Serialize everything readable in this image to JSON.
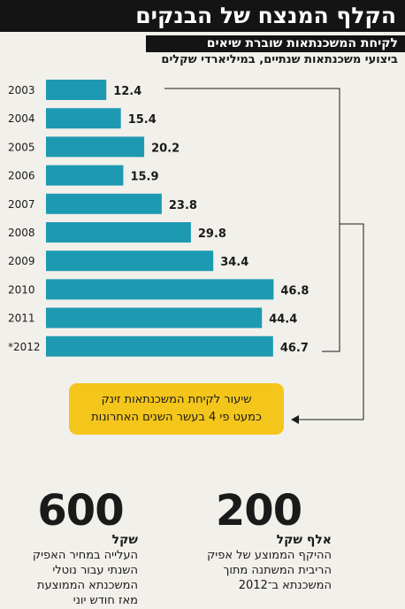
{
  "title": "הקלף המנצח של הבנקים",
  "subtitle": "לקיחת המשכנתאות שוברת שיאים",
  "units_note": "ביצועי משכנתאות שנתיים, במיליארדי שקלים",
  "colors": {
    "bar": "#1d9ab2",
    "callout": "#f4c51b",
    "title_bg": "#141414"
  },
  "chart_data": {
    "type": "bar",
    "orientation": "horizontal",
    "categories": [
      "2003",
      "2004",
      "2005",
      "2006",
      "2007",
      "2008",
      "2009",
      "2010",
      "2011",
      "*2012"
    ],
    "values": [
      12.4,
      15.4,
      20.2,
      15.9,
      23.8,
      29.8,
      34.4,
      46.8,
      44.4,
      46.7
    ],
    "value_labels": [
      "12.4",
      "15.4",
      "20.2",
      "15.9",
      "23.8",
      "29.8",
      "34.4",
      "46.8",
      "44.4",
      "46.7"
    ],
    "xlim": [
      0,
      50
    ],
    "grid": false,
    "legend": "none"
  },
  "callout": {
    "line1": "שיעור לקיחת המשכנתאות זינק",
    "line2": "כמעט פי 4 בעשר השנים האחרונות"
  },
  "stats": [
    {
      "number": "600",
      "unit": "שקל",
      "lines": [
        "העלייה במחיר האפיק",
        "השנתי עבור נוטלי",
        "המשכנתא הממוצעת",
        "מאז חודש יוני"
      ]
    },
    {
      "number": "200",
      "unit": "אלף שקל",
      "lines": [
        "ההיקף הממוצע של אפיק",
        "הריבית המשתנה מתוך",
        "המשכנתא ב־2012"
      ]
    }
  ]
}
